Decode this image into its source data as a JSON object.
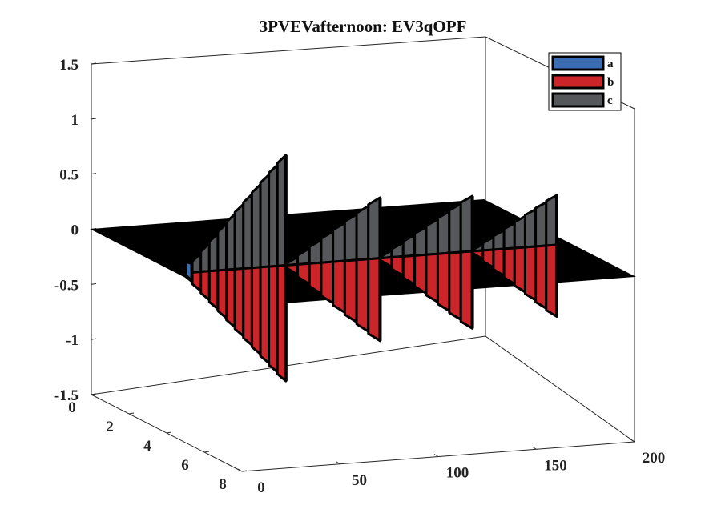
{
  "chart_data": {
    "type": "3d-ribbon",
    "title": "3PVEVafternoon: EV3qOPF",
    "xlabel": "",
    "ylabel": "",
    "zlabel": "",
    "axes": {
      "x_ticks": [
        "0",
        "50",
        "100",
        "150",
        "200"
      ],
      "x_range": [
        0,
        200
      ],
      "y_ticks": [
        "0",
        "2",
        "4",
        "6",
        "8"
      ],
      "y_range": [
        0,
        8
      ],
      "z_ticks": [
        "1.5",
        "1",
        "0.5",
        "0",
        "-0.5",
        "-1",
        "-1.5"
      ],
      "z_range": [
        -1.5,
        1.5
      ]
    },
    "grid": false,
    "legend_position": "top-right",
    "series": [
      {
        "name": "a",
        "color": "#3b6db3"
      },
      {
        "name": "b",
        "color": "#cc2529"
      },
      {
        "name": "c",
        "color": "#55575a"
      }
    ],
    "plane_color": "#000000"
  }
}
